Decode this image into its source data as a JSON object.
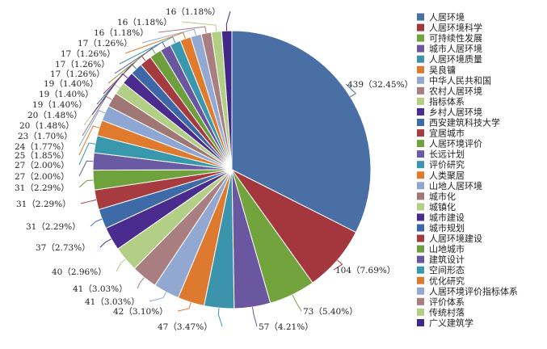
{
  "chart_data": {
    "type": "pie",
    "title": "",
    "legend_position": "right",
    "slices": [
      {
        "label": "人居环境",
        "value": 439,
        "percent_text": "32.45%",
        "color": "#4a6fa5"
      },
      {
        "label": "人居环境科学",
        "value": 104,
        "percent_text": "7.69%",
        "color": "#a4363d"
      },
      {
        "label": "可持续性发展",
        "value": 73,
        "percent_text": "5.40%",
        "color": "#73a33c"
      },
      {
        "label": "城市人居环境",
        "value": 57,
        "percent_text": "4.21%",
        "color": "#6b56a0"
      },
      {
        "label": "人居环境质量",
        "value": 47,
        "percent_text": "3.47%",
        "color": "#3b94ab"
      },
      {
        "label": "吴良镛",
        "value": 42,
        "percent_text": "3.10%",
        "color": "#dd7a30"
      },
      {
        "label": "中华人民共和国",
        "value": 41,
        "percent_text": "3.03%",
        "color": "#93a8d0"
      },
      {
        "label": "农村人居环境",
        "value": 41,
        "percent_text": "3.03%",
        "color": "#a87e80"
      },
      {
        "label": "指标体系",
        "value": 40,
        "percent_text": "2.96%",
        "color": "#b3cf86"
      },
      {
        "label": "乡村人居环境",
        "value": 37,
        "percent_text": "2.73%",
        "color": "#4a2b8e"
      },
      {
        "label": "西安建筑科技大学",
        "value": 31,
        "percent_text": "2.29%",
        "color": "#3f6aa8"
      },
      {
        "label": "宜居城市",
        "value": 31,
        "percent_text": "2.29%",
        "color": "#a63c40"
      },
      {
        "label": "人居环境评价",
        "value": 31,
        "percent_text": "2.29%",
        "color": "#6fa13d"
      },
      {
        "label": "长远计划",
        "value": 27,
        "percent_text": "2.00%",
        "color": "#6a59a3"
      },
      {
        "label": "评价研究",
        "value": 27,
        "percent_text": "2.00%",
        "color": "#3a98ad"
      },
      {
        "label": "人类聚居",
        "value": 25,
        "percent_text": "1.85%",
        "color": "#e07b2e"
      },
      {
        "label": "山地人居环境",
        "value": 24,
        "percent_text": "1.77%",
        "color": "#8da6d2"
      },
      {
        "label": "城市化",
        "value": 23,
        "percent_text": "1.70%",
        "color": "#a07775"
      },
      {
        "label": "城镇化",
        "value": 20,
        "percent_text": "1.48%",
        "color": "#b1cf85"
      },
      {
        "label": "城市建设",
        "value": 20,
        "percent_text": "1.48%",
        "color": "#4a2b8e"
      },
      {
        "label": "城市规划",
        "value": 19,
        "percent_text": "1.40%",
        "color": "#3d67a6"
      },
      {
        "label": "人居环境建设",
        "value": 19,
        "percent_text": "1.40%",
        "color": "#a53b41"
      },
      {
        "label": "山地城市",
        "value": 19,
        "percent_text": "1.40%",
        "color": "#6e9f3d"
      },
      {
        "label": "建筑设计",
        "value": 17,
        "percent_text": "1.26%",
        "color": "#6a56a0"
      },
      {
        "label": "空间形态",
        "value": 17,
        "percent_text": "1.26%",
        "color": "#3b97ad"
      },
      {
        "label": "优化研究",
        "value": 17,
        "percent_text": "1.26%",
        "color": "#e07b2e"
      },
      {
        "label": "人居环境评价指标体系",
        "value": 17,
        "percent_text": "1.26%",
        "color": "#93a9d2"
      },
      {
        "label": "评价体系",
        "value": 16,
        "percent_text": "1.18%",
        "color": "#a87f80"
      },
      {
        "label": "传统村落",
        "value": 16,
        "percent_text": "1.18%",
        "color": "#b3cf86"
      },
      {
        "label": "广义建筑学",
        "value": 16,
        "percent_text": "1.18%",
        "color": "#3f2887"
      }
    ]
  }
}
